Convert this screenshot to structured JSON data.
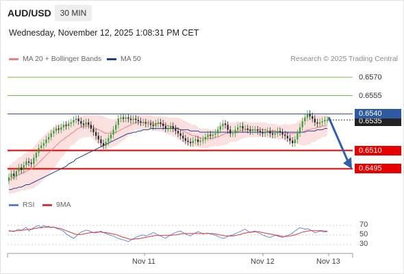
{
  "header": {
    "symbol": "AUD/USD",
    "timeframe": "30 MIN",
    "datetime": "Wednesday, November 12, 2025 1:08:31 PM CET"
  },
  "legend": {
    "ma20_label": "MA 20 + Bollinger Bands",
    "ma50_label": "MA 50",
    "credit": "Research © 2025 Trading Central"
  },
  "rsi_legend": {
    "rsi_label": "RSI",
    "ma_label": "9MA"
  },
  "colors": {
    "resistance": "#78b94d",
    "support": "#e60000",
    "ma50": "#1f3f8c",
    "ma20": "#f08080",
    "bollinger_fill": "#fbe0e0",
    "candle_up": "#3a9a3a",
    "candle_down": "#222222",
    "rsi": "#5b7fd6",
    "rsi_ma": "#d63a3a",
    "arrow": "#2e5fa8",
    "current_price_bg": "#2d5aa0",
    "last_price_bg": "#222222"
  },
  "chart_data": [
    {
      "type": "candlestick",
      "x_ticks": [
        "Nov 11",
        "Nov 12",
        "Nov 13"
      ],
      "ylim": [
        0.6475,
        0.658
      ],
      "levels": [
        {
          "label": "0.6570",
          "value": 0.657,
          "kind": "resistance"
        },
        {
          "label": "0.6555",
          "value": 0.6555,
          "kind": "resistance"
        },
        {
          "label": "0.6540",
          "value": 0.654,
          "kind": "current"
        },
        {
          "label": "0.6535",
          "value": 0.6535,
          "kind": "last"
        },
        {
          "label": "0.6510",
          "value": 0.651,
          "kind": "support"
        },
        {
          "label": "0.6495",
          "value": 0.6495,
          "kind": "support"
        }
      ],
      "closes": [
        0.6488,
        0.6491,
        0.6489,
        0.6493,
        0.6496,
        0.6494,
        0.6498,
        0.6501,
        0.65,
        0.6499,
        0.6504,
        0.6508,
        0.6512,
        0.6514,
        0.6516,
        0.6519,
        0.6521,
        0.6524,
        0.6526,
        0.6528,
        0.6527,
        0.6529,
        0.6531,
        0.653,
        0.6532,
        0.6533,
        0.6535,
        0.6536,
        0.6534,
        0.6532,
        0.6531,
        0.6533,
        0.6531,
        0.6528,
        0.6525,
        0.6522,
        0.6519,
        0.6516,
        0.6514,
        0.6517,
        0.652,
        0.6523,
        0.6527,
        0.6531,
        0.6536,
        0.6537,
        0.6536,
        0.6537,
        0.6536,
        0.6535,
        0.6536,
        0.6535,
        0.6534,
        0.6533,
        0.6533,
        0.6532,
        0.6532,
        0.6531,
        0.653,
        0.6532,
        0.6533,
        0.6532,
        0.653,
        0.6528,
        0.6528,
        0.653,
        0.6528,
        0.6526,
        0.6524,
        0.6522,
        0.652,
        0.6518,
        0.6517,
        0.6516,
        0.6518,
        0.6519,
        0.6517,
        0.6518,
        0.6519,
        0.6521,
        0.6523,
        0.6522,
        0.6523,
        0.6524,
        0.6527,
        0.653,
        0.6532,
        0.6531,
        0.6527,
        0.6524,
        0.6524,
        0.6527,
        0.6529,
        0.653,
        0.6528,
        0.6528,
        0.6527,
        0.6526,
        0.6527,
        0.6527,
        0.6526,
        0.6525,
        0.6524,
        0.6525,
        0.6526,
        0.6524,
        0.6523,
        0.6524,
        0.6526,
        0.6525,
        0.6523,
        0.6522,
        0.652,
        0.6518,
        0.6516,
        0.6519,
        0.6524,
        0.6529,
        0.6534,
        0.6537,
        0.654,
        0.6538,
        0.6536,
        0.6533,
        0.6532,
        0.6533,
        0.6534,
        0.6535,
        0.6535
      ],
      "ma20": [
        0.6486,
        0.6487,
        0.6488,
        0.6489,
        0.649,
        0.6491,
        0.6492,
        0.6493,
        0.6494,
        0.6495,
        0.6496,
        0.6498,
        0.65,
        0.6502,
        0.6504,
        0.6506,
        0.6508,
        0.651,
        0.6512,
        0.6514,
        0.6516,
        0.6518,
        0.6519,
        0.6521,
        0.6522,
        0.6524,
        0.6525,
        0.6527,
        0.6528,
        0.6529,
        0.653,
        0.653,
        0.653,
        0.653,
        0.6529,
        0.6528,
        0.6527,
        0.6526,
        0.6525,
        0.6524,
        0.6524,
        0.6524,
        0.6524,
        0.6525,
        0.6526,
        0.6527,
        0.6528,
        0.6529,
        0.653,
        0.6531,
        0.6532,
        0.6533,
        0.6533,
        0.6533,
        0.6533,
        0.6533,
        0.6533,
        0.6533,
        0.6532,
        0.6532,
        0.6532,
        0.6532,
        0.6531,
        0.6531,
        0.653,
        0.653,
        0.6529,
        0.6529,
        0.6528,
        0.6527,
        0.6526,
        0.6525,
        0.6524,
        0.6523,
        0.6522,
        0.6522,
        0.6521,
        0.652,
        0.652,
        0.652,
        0.652,
        0.652,
        0.652,
        0.6521,
        0.6521,
        0.6522,
        0.6523,
        0.6524,
        0.6524,
        0.6525,
        0.6525,
        0.6525,
        0.6526,
        0.6526,
        0.6527,
        0.6527,
        0.6527,
        0.6527,
        0.6527,
        0.6527,
        0.6527,
        0.6527,
        0.6527,
        0.6527,
        0.6526,
        0.6526,
        0.6526,
        0.6526,
        0.6525,
        0.6525,
        0.6525,
        0.6525,
        0.6524,
        0.6524,
        0.6524,
        0.6524,
        0.6524,
        0.6525,
        0.6525,
        0.6526,
        0.6527,
        0.6527,
        0.6528,
        0.6528,
        0.6529,
        0.6529,
        0.653,
        0.653,
        0.6531
      ],
      "ma50": [
        0.6478,
        0.6478,
        0.6479,
        0.6479,
        0.648,
        0.648,
        0.6481,
        0.6482,
        0.6482,
        0.6483,
        0.6484,
        0.6485,
        0.6486,
        0.6487,
        0.6488,
        0.6489,
        0.649,
        0.6491,
        0.6492,
        0.6493,
        0.6494,
        0.6495,
        0.6496,
        0.6497,
        0.6499,
        0.65,
        0.6501,
        0.6503,
        0.6504,
        0.6505,
        0.6506,
        0.6507,
        0.6508,
        0.6509,
        0.651,
        0.6511,
        0.6512,
        0.6513,
        0.6514,
        0.6515,
        0.6516,
        0.6517,
        0.6518,
        0.6519,
        0.652,
        0.6521,
        0.6522,
        0.6523,
        0.6524,
        0.6524,
        0.6525,
        0.6525,
        0.6526,
        0.6526,
        0.6527,
        0.6527,
        0.6527,
        0.6528,
        0.6528,
        0.6528,
        0.6528,
        0.6528,
        0.6528,
        0.6528,
        0.6528,
        0.6528,
        0.6528,
        0.6528,
        0.6528,
        0.6527,
        0.6527,
        0.6527,
        0.6527,
        0.6526,
        0.6526,
        0.6526,
        0.6526,
        0.6525,
        0.6525,
        0.6525,
        0.6525,
        0.6525,
        0.6525,
        0.6525,
        0.6525,
        0.6525,
        0.6525,
        0.6525,
        0.6525,
        0.6525,
        0.6525,
        0.6525,
        0.6525,
        0.6525,
        0.6525,
        0.6525,
        0.6525,
        0.6525,
        0.6525,
        0.6525,
        0.6525,
        0.6525,
        0.6525,
        0.6525,
        0.6525,
        0.6525,
        0.6525,
        0.6525,
        0.6525,
        0.6525,
        0.6525,
        0.6525,
        0.6525,
        0.6525,
        0.6525,
        0.6525,
        0.6525,
        0.6525,
        0.6525,
        0.6525,
        0.6526,
        0.6526,
        0.6526,
        0.6526,
        0.6527,
        0.6527,
        0.6527,
        0.6528,
        0.6528
      ],
      "bollinger_width": [
        0.0012,
        0.0012,
        0.0013,
        0.0013,
        0.0014,
        0.0014,
        0.0015,
        0.0015,
        0.0016,
        0.0016,
        0.0017,
        0.0017,
        0.0018,
        0.0018,
        0.0018,
        0.0018,
        0.0018,
        0.0017,
        0.0017,
        0.0016,
        0.0015,
        0.0014,
        0.0013,
        0.0012,
        0.0011,
        0.001,
        0.001,
        0.001,
        0.0009,
        0.0009,
        0.0009,
        0.0009,
        0.0009,
        0.0009,
        0.001,
        0.0011,
        0.0012,
        0.0013,
        0.0013,
        0.0013,
        0.0012,
        0.0012,
        0.0011,
        0.0011,
        0.0011,
        0.001,
        0.001,
        0.0009,
        0.0008,
        0.0007,
        0.0006,
        0.0006,
        0.0006,
        0.0006,
        0.0006,
        0.0006,
        0.0006,
        0.0006,
        0.0006,
        0.0006,
        0.0006,
        0.0006,
        0.0006,
        0.0007,
        0.0007,
        0.0007,
        0.0008,
        0.0008,
        0.0009,
        0.0009,
        0.0009,
        0.0009,
        0.0009,
        0.0009,
        0.0009,
        0.0009,
        0.0008,
        0.0008,
        0.0008,
        0.0008,
        0.0008,
        0.0007,
        0.0007,
        0.0007,
        0.0008,
        0.0008,
        0.0009,
        0.0009,
        0.0009,
        0.0008,
        0.0008,
        0.0008,
        0.0008,
        0.0007,
        0.0007,
        0.0007,
        0.0006,
        0.0006,
        0.0006,
        0.0006,
        0.0006,
        0.0006,
        0.0006,
        0.0006,
        0.0006,
        0.0006,
        0.0006,
        0.0006,
        0.0006,
        0.0006,
        0.0006,
        0.0007,
        0.0007,
        0.0007,
        0.0008,
        0.0008,
        0.0009,
        0.001,
        0.0011,
        0.0012,
        0.0012,
        0.0012,
        0.0011,
        0.0011,
        0.001,
        0.001,
        0.0009,
        0.0009,
        0.0009
      ],
      "forecast": {
        "from": 0.6535,
        "to": 0.6495
      }
    },
    {
      "type": "line",
      "title": "RSI",
      "y_ticks": [
        70,
        50,
        30
      ],
      "ylim": [
        20,
        80
      ],
      "rsi": [
        60,
        58,
        57,
        60,
        62,
        59,
        63,
        66,
        58,
        62,
        65,
        68,
        70,
        66,
        70,
        67,
        68,
        65,
        67,
        64,
        62,
        60,
        58,
        52,
        49,
        46,
        43,
        47,
        52,
        56,
        58,
        60,
        59,
        57,
        55,
        54,
        56,
        58,
        55,
        53,
        51,
        49,
        48,
        45,
        43,
        41,
        40,
        38,
        36,
        39,
        42,
        45,
        47,
        49,
        50,
        48,
        50,
        52,
        55,
        53,
        50,
        48,
        45,
        43,
        47,
        50,
        53,
        55,
        57,
        58,
        55,
        52,
        50,
        48,
        52,
        54,
        57,
        55,
        52,
        53,
        54,
        52,
        51,
        49,
        47,
        45,
        43,
        44,
        47,
        49,
        50,
        53,
        55,
        57,
        60,
        62,
        58,
        55,
        57,
        58,
        55,
        53,
        50,
        48,
        46,
        45,
        47,
        49,
        48,
        46,
        45,
        47,
        49,
        51,
        54,
        58,
        62,
        65,
        64,
        62,
        63,
        61,
        58,
        55,
        56,
        58,
        57,
        56,
        57
      ],
      "rsi_ma": [
        58,
        58,
        58,
        59,
        59,
        60,
        60,
        61,
        62,
        62,
        63,
        64,
        65,
        65,
        66,
        66,
        66,
        66,
        66,
        65,
        64,
        63,
        61,
        59,
        57,
        55,
        53,
        51,
        51,
        51,
        52,
        53,
        54,
        55,
        55,
        56,
        56,
        56,
        55,
        55,
        54,
        53,
        52,
        51,
        49,
        47,
        45,
        44,
        42,
        41,
        41,
        42,
        42,
        43,
        44,
        45,
        46,
        47,
        48,
        49,
        49,
        49,
        49,
        49,
        49,
        49,
        50,
        50,
        51,
        52,
        53,
        53,
        53,
        53,
        53,
        53,
        53,
        53,
        53,
        53,
        53,
        53,
        53,
        52,
        51,
        50,
        49,
        48,
        48,
        48,
        48,
        49,
        50,
        51,
        53,
        54,
        55,
        56,
        56,
        57,
        57,
        56,
        55,
        54,
        53,
        52,
        51,
        50,
        49,
        48,
        47,
        47,
        47,
        48,
        49,
        50,
        52,
        54,
        56,
        57,
        58,
        59,
        59,
        59,
        59,
        59,
        59,
        58,
        58
      ]
    }
  ]
}
